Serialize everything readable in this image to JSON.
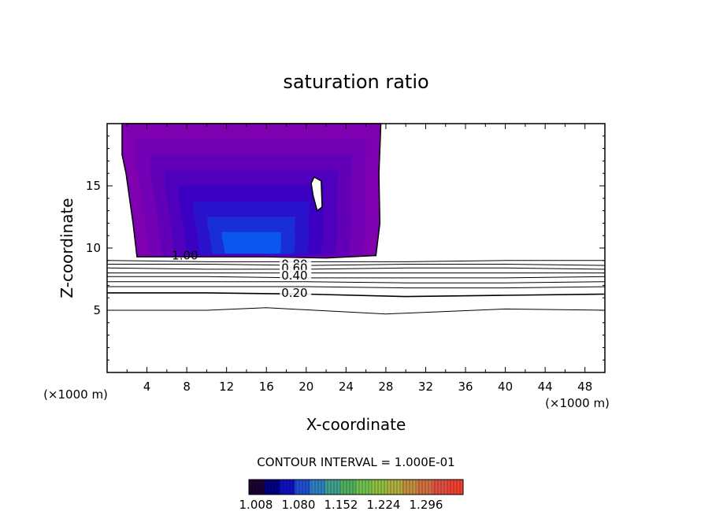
{
  "chart_data": {
    "type": "contour",
    "title": "saturation ratio",
    "xlabel": "X-coordinate",
    "ylabel": "Z-coordinate",
    "x_unit_left": "(×1000 m)",
    "x_unit_right": "(×1000 m)",
    "xlim": [
      0,
      50
    ],
    "ylim": [
      0,
      20
    ],
    "x_ticks": [
      4,
      8,
      12,
      16,
      20,
      24,
      28,
      32,
      36,
      40,
      44,
      48
    ],
    "y_ticks": [
      5,
      10,
      15
    ],
    "contour_interval_text": "CONTOUR INTERVAL = 1.000E-01",
    "contour_labels": [
      {
        "text": "1.00",
        "x": 6.5,
        "z": 9.4
      },
      {
        "text": "0.80",
        "x": 17.5,
        "z": 8.7
      },
      {
        "text": "0.60",
        "x": 17.5,
        "z": 8.4
      },
      {
        "text": "0.40",
        "x": 17.5,
        "z": 7.8
      },
      {
        "text": "0.20",
        "x": 17.5,
        "z": 6.4
      }
    ],
    "contour_lines": [
      {
        "value": 0.9,
        "points": [
          [
            0,
            9.0
          ],
          [
            10,
            8.9
          ],
          [
            20,
            8.9
          ],
          [
            30,
            8.9
          ],
          [
            40,
            9.0
          ],
          [
            50,
            9.0
          ]
        ]
      },
      {
        "value": 0.8,
        "points": [
          [
            0,
            8.7
          ],
          [
            10,
            8.7
          ],
          [
            20,
            8.6
          ],
          [
            30,
            8.7
          ],
          [
            40,
            8.7
          ],
          [
            50,
            8.6
          ]
        ]
      },
      {
        "value": 0.7,
        "points": [
          [
            0,
            8.4
          ],
          [
            10,
            8.3
          ],
          [
            20,
            8.3
          ],
          [
            30,
            8.4
          ],
          [
            40,
            8.4
          ],
          [
            50,
            8.3
          ]
        ]
      },
      {
        "value": 0.6,
        "points": [
          [
            0,
            8.0
          ],
          [
            10,
            8.0
          ],
          [
            20,
            8.0
          ],
          [
            30,
            8.0
          ],
          [
            40,
            8.0
          ],
          [
            50,
            8.0
          ]
        ]
      },
      {
        "value": 0.5,
        "points": [
          [
            0,
            7.7
          ],
          [
            10,
            7.7
          ],
          [
            20,
            7.6
          ],
          [
            30,
            7.6
          ],
          [
            40,
            7.6
          ],
          [
            50,
            7.7
          ]
        ]
      },
      {
        "value": 0.4,
        "points": [
          [
            0,
            7.3
          ],
          [
            10,
            7.3
          ],
          [
            20,
            7.3
          ],
          [
            30,
            7.2
          ],
          [
            40,
            7.2
          ],
          [
            50,
            7.3
          ]
        ]
      },
      {
        "value": 0.3,
        "points": [
          [
            0,
            6.9
          ],
          [
            10,
            6.9
          ],
          [
            20,
            6.9
          ],
          [
            30,
            6.8
          ],
          [
            40,
            6.8
          ],
          [
            50,
            6.9
          ]
        ]
      },
      {
        "value": 0.2,
        "points": [
          [
            0,
            6.4
          ],
          [
            10,
            6.4
          ],
          [
            20,
            6.3
          ],
          [
            30,
            6.1
          ],
          [
            40,
            6.2
          ],
          [
            50,
            6.3
          ]
        ]
      },
      {
        "value": 0.1,
        "points": [
          [
            0,
            5.0
          ],
          [
            10,
            5.0
          ],
          [
            16,
            5.2
          ],
          [
            28,
            4.7
          ],
          [
            40,
            5.1
          ],
          [
            50,
            5.0
          ]
        ]
      }
    ],
    "filled_region": {
      "levels": [
        1.008,
        1.02,
        1.03,
        1.04,
        1.05,
        1.06,
        1.08,
        1.1
      ],
      "colors": [
        "#7f00b0",
        "#7200b4",
        "#6200b8",
        "#4e00bc",
        "#3c00c2",
        "#2a12cc",
        "#1a2ed6",
        "#0a56ee"
      ],
      "outer_boundary": [
        [
          1.5,
          20
        ],
        [
          27.5,
          20
        ],
        [
          27.3,
          16
        ],
        [
          27.4,
          12
        ],
        [
          27.0,
          9.4
        ],
        [
          22,
          9.2
        ],
        [
          16,
          9.3
        ],
        [
          10,
          9.3
        ],
        [
          3.0,
          9.3
        ],
        [
          2.6,
          12
        ],
        [
          1.9,
          16
        ],
        [
          1.5,
          17.5
        ]
      ],
      "hole": [
        [
          20.8,
          15.7
        ],
        [
          21.5,
          15.4
        ],
        [
          21.6,
          13.3
        ],
        [
          21.1,
          13.0
        ],
        [
          20.7,
          14.2
        ],
        [
          20.5,
          15.2
        ]
      ]
    },
    "colorbar": {
      "tick_labels": [
        "1.008",
        "1.080",
        "1.152",
        "1.224",
        "1.296"
      ],
      "colors": [
        "#1a0033",
        "#000080",
        "#1010c0",
        "#2050d0",
        "#3080c0",
        "#40a090",
        "#50b060",
        "#70c050",
        "#90c040",
        "#b0b040",
        "#c09040",
        "#d07040",
        "#e05040",
        "#f04030"
      ]
    }
  }
}
